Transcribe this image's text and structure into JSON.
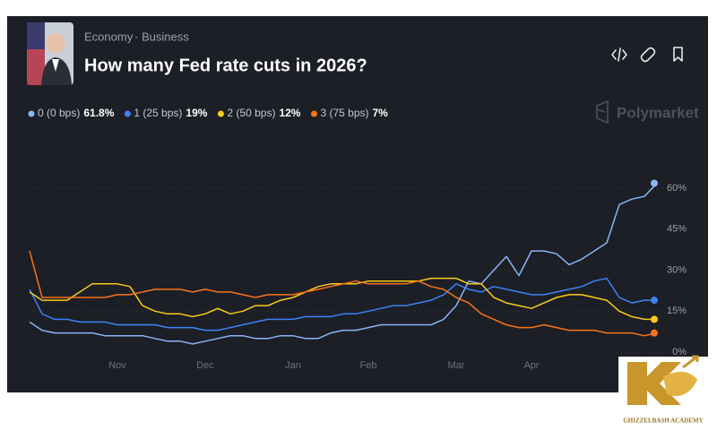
{
  "header": {
    "breadcrumb": [
      "Economy",
      "Business"
    ],
    "breadcrumb_separator": "·",
    "title": "How many Fed rate cuts in 2026?",
    "brand": "Polymarket"
  },
  "chart_data": {
    "type": "line",
    "categories": [
      null,
      null,
      null,
      null,
      null,
      null,
      null,
      "Nov",
      null,
      null,
      null,
      null,
      null,
      null,
      "Dec",
      null,
      null,
      null,
      null,
      null,
      null,
      "Jan",
      null,
      null,
      null,
      null,
      null,
      "Feb",
      null,
      null,
      null,
      null,
      null,
      null,
      "Mar",
      null,
      null,
      null,
      null,
      null,
      "Apr",
      null,
      null,
      null,
      null,
      null,
      null,
      null,
      null,
      null,
      null
    ],
    "series": [
      {
        "name": "0 (0 bps)",
        "color": "#8ab4f8",
        "values": [
          11,
          8,
          7,
          7,
          7,
          7,
          6,
          6,
          6,
          6,
          5,
          4,
          4,
          3,
          4,
          5,
          6,
          6,
          5,
          5,
          6,
          6,
          5,
          5,
          7,
          8,
          8,
          9,
          10,
          10,
          10,
          10,
          10,
          12,
          17,
          26,
          25,
          30,
          35,
          28,
          37,
          37,
          36,
          32,
          34,
          37,
          40,
          54,
          56,
          57,
          61.8
        ],
        "value_labels": [
          null,
          null,
          null,
          null,
          null,
          null,
          null,
          null,
          null,
          null,
          null,
          null,
          null,
          null,
          null,
          null,
          null,
          null,
          null,
          null,
          null,
          null,
          null,
          null,
          null,
          null,
          null,
          null,
          null,
          null,
          null,
          null,
          null,
          null,
          null,
          null,
          null,
          null,
          null,
          null,
          null,
          null,
          null,
          null,
          null,
          null,
          null,
          null,
          null,
          null,
          "61.8%"
        ]
      },
      {
        "name": "1 (25 bps)",
        "color": "#3b82f6",
        "values": [
          23,
          14,
          12,
          12,
          11,
          11,
          11,
          10,
          10,
          10,
          10,
          9,
          9,
          9,
          8,
          8,
          9,
          10,
          11,
          12,
          12,
          12,
          13,
          13,
          13,
          14,
          14,
          15,
          16,
          17,
          17,
          18,
          19,
          21,
          25,
          23,
          22,
          24,
          23,
          22,
          21,
          21,
          22,
          23,
          24,
          26,
          27,
          20,
          18,
          19,
          19
        ],
        "value_labels": [
          null,
          null,
          null,
          null,
          null,
          null,
          null,
          null,
          null,
          null,
          null,
          null,
          null,
          null,
          null,
          null,
          null,
          null,
          null,
          null,
          null,
          null,
          null,
          null,
          null,
          null,
          null,
          null,
          null,
          null,
          null,
          null,
          null,
          null,
          null,
          null,
          null,
          null,
          null,
          null,
          null,
          null,
          null,
          null,
          null,
          null,
          null,
          null,
          null,
          null,
          "19%"
        ]
      },
      {
        "name": "2 (50 bps)",
        "color": "#facc15",
        "values": [
          22,
          19,
          19,
          19,
          22,
          25,
          25,
          25,
          24,
          17,
          15,
          14,
          14,
          13,
          14,
          16,
          14,
          15,
          17,
          17,
          19,
          20,
          22,
          24,
          25,
          25,
          25,
          26,
          26,
          26,
          26,
          26,
          27,
          27,
          27,
          25,
          25,
          20,
          18,
          17,
          16,
          18,
          20,
          21,
          21,
          20,
          19,
          15,
          13,
          12,
          12
        ],
        "value_labels": [
          null,
          null,
          null,
          null,
          null,
          null,
          null,
          null,
          null,
          null,
          null,
          null,
          null,
          null,
          null,
          null,
          null,
          null,
          null,
          null,
          null,
          null,
          null,
          null,
          null,
          null,
          null,
          null,
          null,
          null,
          null,
          null,
          null,
          null,
          null,
          null,
          null,
          null,
          null,
          null,
          null,
          null,
          null,
          null,
          null,
          null,
          null,
          null,
          null,
          null,
          "12%"
        ]
      },
      {
        "name": "3 (75 bps)",
        "color": "#f97316",
        "values": [
          37,
          20,
          20,
          20,
          20,
          20,
          20,
          21,
          21,
          22,
          23,
          23,
          23,
          22,
          23,
          22,
          22,
          21,
          20,
          21,
          21,
          21,
          22,
          23,
          24,
          25,
          26,
          25,
          25,
          25,
          25,
          26,
          24,
          23,
          20,
          18,
          14,
          12,
          10,
          9,
          9,
          10,
          9,
          8,
          8,
          8,
          7,
          7,
          7,
          6,
          7
        ],
        "value_labels": [
          null,
          null,
          null,
          null,
          null,
          null,
          null,
          null,
          null,
          null,
          null,
          null,
          null,
          null,
          null,
          null,
          null,
          null,
          null,
          null,
          null,
          null,
          null,
          null,
          null,
          null,
          null,
          null,
          null,
          null,
          null,
          null,
          null,
          null,
          null,
          null,
          null,
          null,
          null,
          null,
          null,
          null,
          null,
          null,
          null,
          null,
          null,
          null,
          null,
          null,
          "7%"
        ]
      }
    ],
    "ylim": [
      0,
      65
    ],
    "yticks": [
      {
        "value": 0,
        "label": "0%"
      },
      {
        "value": 15,
        "label": "15%"
      },
      {
        "value": 30,
        "label": "30%"
      },
      {
        "value": 45,
        "label": "45%"
      },
      {
        "value": 60,
        "label": "60%"
      }
    ],
    "grid": true,
    "legend": "top-left"
  },
  "watermark": {
    "name": "GHIZZELBASH ACADEMY"
  }
}
